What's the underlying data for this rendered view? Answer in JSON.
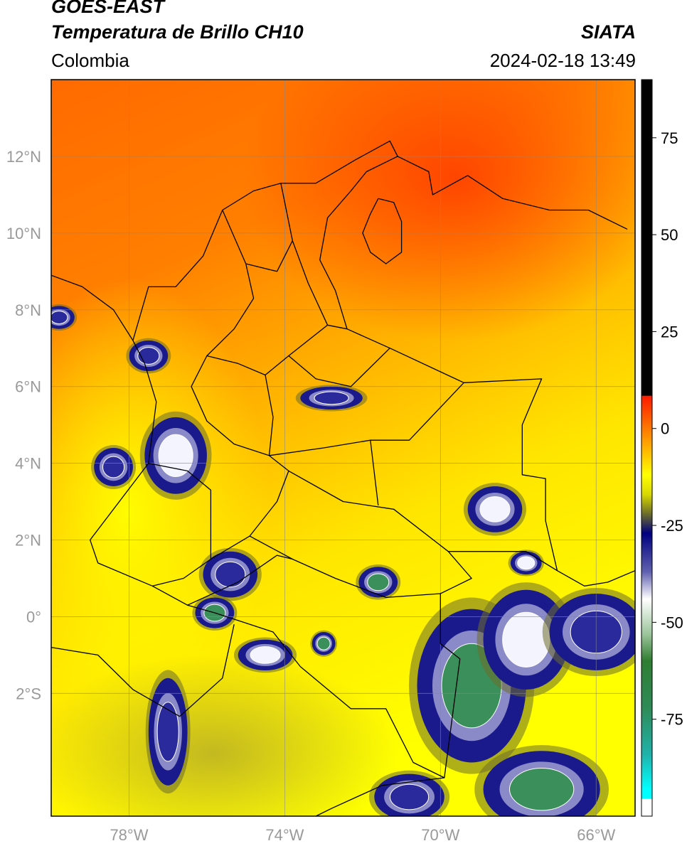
{
  "header": {
    "satellite": "GOES-EAST",
    "product": "Temperatura de Brillo CH10",
    "region": "Colombia",
    "organization": "SIATA",
    "datetime": "2024-02-18 13:49"
  },
  "map": {
    "lon_labels": [
      "78°W",
      "74°W",
      "70°W",
      "66°W"
    ],
    "lat_labels": [
      "12°N",
      "10°N",
      "8°N",
      "6°N",
      "4°N",
      "2°N",
      "0°",
      "2°S"
    ],
    "lon_values": [
      -78,
      -74,
      -70,
      -66
    ],
    "lat_values": [
      12,
      10,
      8,
      6,
      4,
      2,
      0,
      -2
    ],
    "lon_range": [
      -80,
      -65
    ],
    "lat_range": [
      -5.2,
      14
    ]
  },
  "colorbar": {
    "tick_labels": [
      "75",
      "50",
      "25",
      "0",
      "-25",
      "-50",
      "-75"
    ],
    "tick_values": [
      75,
      50,
      25,
      0,
      -25,
      -50,
      -75
    ],
    "range": [
      -100,
      90
    ],
    "stops": [
      {
        "v": 90,
        "c": "#000000"
      },
      {
        "v": 8.5,
        "c": "#000000"
      },
      {
        "v": 8.4,
        "c": "#ff1a00"
      },
      {
        "v": -12,
        "c": "#ffff00"
      },
      {
        "v": -17,
        "c": "#d8d800"
      },
      {
        "v": -22,
        "c": "#6d6d2a"
      },
      {
        "v": -27,
        "c": "#000080"
      },
      {
        "v": -37,
        "c": "#6060b0"
      },
      {
        "v": -44,
        "c": "#ffffff"
      },
      {
        "v": -53,
        "c": "#9cc59c"
      },
      {
        "v": -60,
        "c": "#2e7d32"
      },
      {
        "v": -72,
        "c": "#2e8b57"
      },
      {
        "v": -84,
        "c": "#20b2aa"
      },
      {
        "v": -93,
        "c": "#00ffff"
      },
      {
        "v": -95.5,
        "c": "#00ffff"
      },
      {
        "v": -95.6,
        "c": "#ffffff"
      },
      {
        "v": -100,
        "c": "#ffffff"
      }
    ]
  },
  "colors": {
    "field_orange": "#ff7a00",
    "field_red": "#ff4500",
    "field_yellow": "#ffff00",
    "field_olive": "#c8c020",
    "cloud_blue": "#1a1a8c",
    "cloud_green": "#3b8f5a",
    "border": "#000000",
    "grid": "#888888"
  },
  "convective_cells": [
    {
      "lon": -76.8,
      "lat": 4.2,
      "rx": 0.8,
      "ry": 1.0,
      "core": "white"
    },
    {
      "lon": -78.4,
      "lat": 3.9,
      "rx": 0.5,
      "ry": 0.5,
      "core": "blue"
    },
    {
      "lon": -75.4,
      "lat": 1.1,
      "rx": 0.7,
      "ry": 0.6,
      "core": "blue"
    },
    {
      "lon": -75.8,
      "lat": 0.1,
      "rx": 0.5,
      "ry": 0.4,
      "core": "green"
    },
    {
      "lon": -74.5,
      "lat": -1.0,
      "rx": 0.7,
      "ry": 0.4,
      "core": "white"
    },
    {
      "lon": -73.0,
      "lat": -0.7,
      "rx": 0.3,
      "ry": 0.3,
      "core": "green"
    },
    {
      "lon": -71.6,
      "lat": 0.9,
      "rx": 0.5,
      "ry": 0.4,
      "core": "green"
    },
    {
      "lon": -68.6,
      "lat": 2.8,
      "rx": 0.7,
      "ry": 0.6,
      "core": "white"
    },
    {
      "lon": -67.8,
      "lat": 1.4,
      "rx": 0.4,
      "ry": 0.3,
      "core": "white"
    },
    {
      "lon": -69.2,
      "lat": -1.8,
      "rx": 1.4,
      "ry": 2.0,
      "core": "green"
    },
    {
      "lon": -67.8,
      "lat": -0.6,
      "rx": 1.1,
      "ry": 1.3,
      "core": "white"
    },
    {
      "lon": -66.0,
      "lat": -0.4,
      "rx": 1.2,
      "ry": 1.0,
      "core": "blue"
    },
    {
      "lon": -67.4,
      "lat": -4.5,
      "rx": 1.5,
      "ry": 1.0,
      "core": "green"
    },
    {
      "lon": -70.8,
      "lat": -4.7,
      "rx": 0.9,
      "ry": 0.6,
      "core": "blue"
    },
    {
      "lon": -77.0,
      "lat": -3.0,
      "rx": 0.5,
      "ry": 1.4,
      "core": "blue"
    },
    {
      "lon": -72.8,
      "lat": 5.7,
      "rx": 0.8,
      "ry": 0.3,
      "core": "blue"
    },
    {
      "lon": -77.5,
      "lat": 6.8,
      "rx": 0.5,
      "ry": 0.4,
      "core": "blue"
    },
    {
      "lon": -79.8,
      "lat": 7.8,
      "rx": 0.4,
      "ry": 0.3,
      "core": "blue"
    }
  ],
  "borders": {
    "colombia": [
      [
        -77.9,
        7.2
      ],
      [
        -77.5,
        8.6
      ],
      [
        -76.8,
        8.6
      ],
      [
        -76.1,
        9.4
      ],
      [
        -75.6,
        10.6
      ],
      [
        -74.8,
        11.1
      ],
      [
        -74.1,
        11.3
      ],
      [
        -73.2,
        11.3
      ],
      [
        -72.2,
        11.9
      ],
      [
        -71.3,
        12.4
      ],
      [
        -71.1,
        12.0
      ],
      [
        -71.9,
        11.6
      ],
      [
        -72.3,
        11.1
      ],
      [
        -72.9,
        10.4
      ],
      [
        -73.1,
        9.3
      ],
      [
        -72.7,
        8.5
      ],
      [
        -72.4,
        7.5
      ],
      [
        -71.3,
        7.0
      ],
      [
        -69.4,
        6.1
      ],
      [
        -67.4,
        6.2
      ],
      [
        -67.9,
        5.0
      ],
      [
        -67.9,
        3.7
      ],
      [
        -67.3,
        3.6
      ],
      [
        -67.3,
        2.5
      ],
      [
        -67.0,
        1.2
      ],
      [
        -67.8,
        1.7
      ],
      [
        -69.8,
        1.7
      ],
      [
        -69.2,
        1.0
      ],
      [
        -70.0,
        0.6
      ],
      [
        -70.0,
        -0.7
      ],
      [
        -69.5,
        -1.1
      ],
      [
        -69.9,
        -4.2
      ],
      [
        -70.7,
        -3.8
      ],
      [
        -71.4,
        -2.4
      ],
      [
        -72.3,
        -2.4
      ],
      [
        -73.6,
        -1.3
      ],
      [
        -74.3,
        -0.4
      ],
      [
        -75.2,
        -0.1
      ],
      [
        -75.8,
        0.1
      ],
      [
        -76.5,
        0.3
      ],
      [
        -77.4,
        0.8
      ],
      [
        -78.8,
        1.4
      ],
      [
        -79.0,
        2.0
      ],
      [
        -77.5,
        4.0
      ],
      [
        -77.3,
        5.6
      ],
      [
        -77.6,
        6.6
      ],
      [
        -77.9,
        7.2
      ]
    ],
    "ecuador_peru_1": [
      [
        -80.0,
        -0.8
      ],
      [
        -78.8,
        -1.0
      ],
      [
        -77.9,
        -1.9
      ],
      [
        -76.7,
        -2.6
      ],
      [
        -75.6,
        -1.6
      ],
      [
        -75.3,
        -0.2
      ]
    ],
    "peru_brazil": [
      [
        -69.9,
        -4.2
      ],
      [
        -71.5,
        -4.4
      ],
      [
        -72.8,
        -5.0
      ],
      [
        -73.2,
        -5.2
      ]
    ],
    "venezuela_coast": [
      [
        -71.1,
        12.0
      ],
      [
        -70.3,
        11.6
      ],
      [
        -70.2,
        11.0
      ],
      [
        -69.3,
        11.5
      ],
      [
        -68.4,
        10.9
      ],
      [
        -67.2,
        10.6
      ],
      [
        -66.2,
        10.6
      ],
      [
        -65.2,
        10.1
      ]
    ],
    "venezuela_brazil": [
      [
        -67.0,
        1.2
      ],
      [
        -66.3,
        0.8
      ],
      [
        -65.7,
        0.9
      ],
      [
        -65.0,
        1.2
      ]
    ],
    "panama": [
      [
        -77.9,
        7.2
      ],
      [
        -78.4,
        8.0
      ],
      [
        -79.2,
        8.6
      ],
      [
        -80.0,
        8.9
      ]
    ],
    "lake_maracaibo": [
      [
        -71.6,
        10.9
      ],
      [
        -71.2,
        10.8
      ],
      [
        -71.0,
        10.3
      ],
      [
        -71.0,
        9.5
      ],
      [
        -71.4,
        9.2
      ],
      [
        -71.8,
        9.5
      ],
      [
        -72.0,
        10.0
      ],
      [
        -71.8,
        10.5
      ],
      [
        -71.6,
        10.9
      ]
    ],
    "interior_dept": [
      [
        -75.6,
        10.6
      ],
      [
        -75.0,
        9.2
      ],
      [
        -74.8,
        8.3
      ],
      [
        -75.3,
        7.5
      ],
      [
        -76.0,
        6.8
      ],
      [
        -76.4,
        6.0
      ],
      [
        -76.0,
        5.1
      ],
      [
        -75.3,
        4.5
      ],
      [
        -74.4,
        4.2
      ],
      [
        -73.9,
        3.8
      ],
      [
        -74.2,
        3.0
      ],
      [
        -74.9,
        2.1
      ],
      [
        -75.9,
        1.5
      ],
      [
        -76.6,
        1.0
      ],
      [
        -77.4,
        0.8
      ]
    ],
    "interior_dept2": [
      [
        -74.1,
        11.3
      ],
      [
        -73.8,
        9.8
      ],
      [
        -73.4,
        8.7
      ],
      [
        -72.9,
        7.6
      ],
      [
        -72.4,
        7.5
      ]
    ],
    "interior_dept3": [
      [
        -74.4,
        4.2
      ],
      [
        -73.0,
        4.4
      ],
      [
        -71.8,
        4.6
      ],
      [
        -70.8,
        4.6
      ],
      [
        -69.4,
        6.1
      ]
    ],
    "interior_dept4": [
      [
        -73.9,
        3.8
      ],
      [
        -72.5,
        3.0
      ],
      [
        -71.2,
        2.8
      ],
      [
        -69.8,
        1.7
      ]
    ],
    "interior_dept5": [
      [
        -71.8,
        4.6
      ],
      [
        -71.6,
        2.9
      ]
    ],
    "interior_dept6": [
      [
        -74.9,
        2.1
      ],
      [
        -73.8,
        1.5
      ],
      [
        -72.7,
        1.0
      ],
      [
        -71.4,
        0.5
      ],
      [
        -70.0,
        0.6
      ]
    ],
    "interior_dept7": [
      [
        -76.5,
        0.3
      ],
      [
        -75.2,
        0.9
      ],
      [
        -74.2,
        1.6
      ],
      [
        -73.8,
        1.5
      ]
    ],
    "interior_dept8": [
      [
        -77.5,
        4.0
      ],
      [
        -76.5,
        3.8
      ],
      [
        -75.9,
        3.3
      ],
      [
        -75.9,
        1.5
      ]
    ],
    "interior_dept9": [
      [
        -76.0,
        6.8
      ],
      [
        -75.2,
        6.6
      ],
      [
        -74.5,
        6.3
      ],
      [
        -73.9,
        6.8
      ],
      [
        -73.4,
        7.2
      ],
      [
        -72.9,
        7.6
      ]
    ],
    "interior_dept10": [
      [
        -75.0,
        9.2
      ],
      [
        -74.2,
        9.0
      ],
      [
        -73.8,
        9.8
      ]
    ],
    "interior_dept11": [
      [
        -74.5,
        6.3
      ],
      [
        -74.3,
        5.2
      ],
      [
        -74.4,
        4.2
      ]
    ],
    "interior_dept12": [
      [
        -73.9,
        6.8
      ],
      [
        -73.2,
        6.2
      ],
      [
        -72.3,
        6.0
      ],
      [
        -71.3,
        7.0
      ]
    ]
  }
}
